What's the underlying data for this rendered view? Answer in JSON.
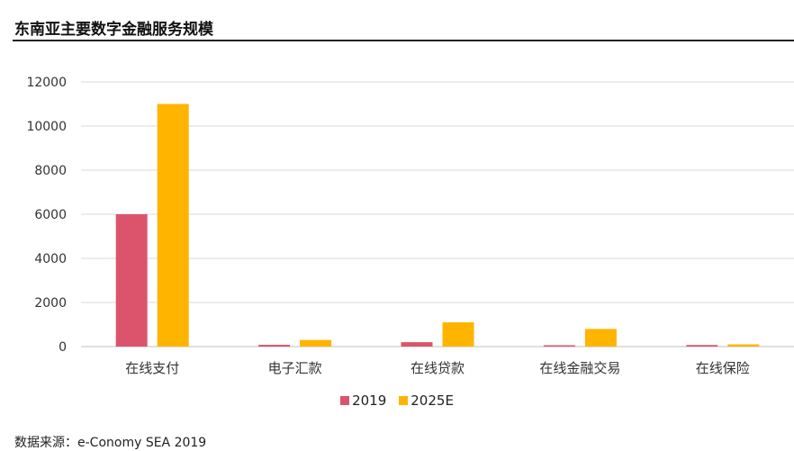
{
  "title": "东南亚主要数字金融服务规模",
  "source": "数据来源：e-Conomy SEA 2019",
  "colors": {
    "series_2019": "#DC546C",
    "series_2025E": "#FFB400",
    "grid": "#D9D9D9"
  },
  "chart_data": {
    "type": "bar",
    "title": "东南亚主要数字金融服务规模",
    "xlabel": "",
    "ylabel": "",
    "categories": [
      "在线支付",
      "电子汇款",
      "在线贷款",
      "在线金融交易",
      "在线保险"
    ],
    "series": [
      {
        "name": "2019",
        "values": [
          6000,
          80,
          200,
          60,
          70
        ]
      },
      {
        "name": "2025E",
        "values": [
          11000,
          300,
          1100,
          800,
          100
        ]
      }
    ],
    "ylim": [
      0,
      12000
    ],
    "yticks": [
      "0",
      "2000",
      "4000",
      "6000",
      "8000",
      "10000",
      "12000"
    ],
    "grid": true,
    "legend": "bottom-center"
  }
}
